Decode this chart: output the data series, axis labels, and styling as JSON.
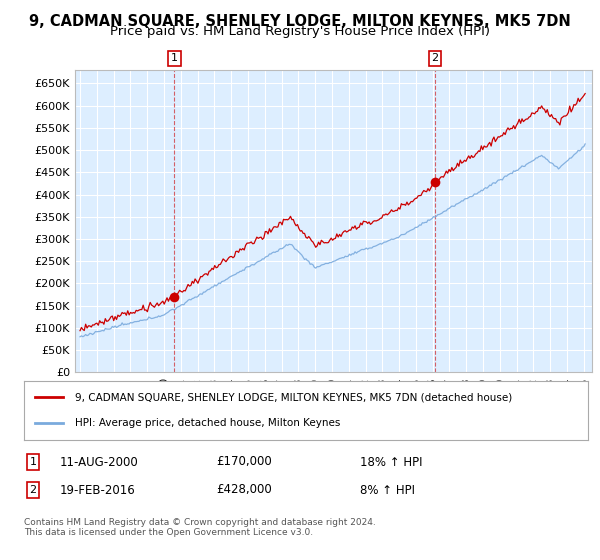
{
  "title": "9, CADMAN SQUARE, SHENLEY LODGE, MILTON KEYNES, MK5 7DN",
  "subtitle": "Price paid vs. HM Land Registry's House Price Index (HPI)",
  "ylabel_ticks": [
    "£0",
    "£50K",
    "£100K",
    "£150K",
    "£200K",
    "£250K",
    "£300K",
    "£350K",
    "£400K",
    "£450K",
    "£500K",
    "£550K",
    "£600K",
    "£650K"
  ],
  "ytick_values": [
    0,
    50000,
    100000,
    150000,
    200000,
    250000,
    300000,
    350000,
    400000,
    450000,
    500000,
    550000,
    600000,
    650000
  ],
  "ylim": [
    0,
    680000
  ],
  "xlim_start": 1994.7,
  "xlim_end": 2025.5,
  "purchase1_x": 2000.617,
  "purchase1_y": 170000,
  "purchase2_x": 2016.13,
  "purchase2_y": 428000,
  "legend_line1": "9, CADMAN SQUARE, SHENLEY LODGE, MILTON KEYNES, MK5 7DN (detached house)",
  "legend_line2": "HPI: Average price, detached house, Milton Keynes",
  "footer": "Contains HM Land Registry data © Crown copyright and database right 2024.\nThis data is licensed under the Open Government Licence v3.0.",
  "bg_color": "#ddeeff",
  "line_color_red": "#cc0000",
  "line_color_blue": "#7aaadd",
  "grid_color": "#ffffff",
  "title_fontsize": 10.5,
  "subtitle_fontsize": 9.5
}
